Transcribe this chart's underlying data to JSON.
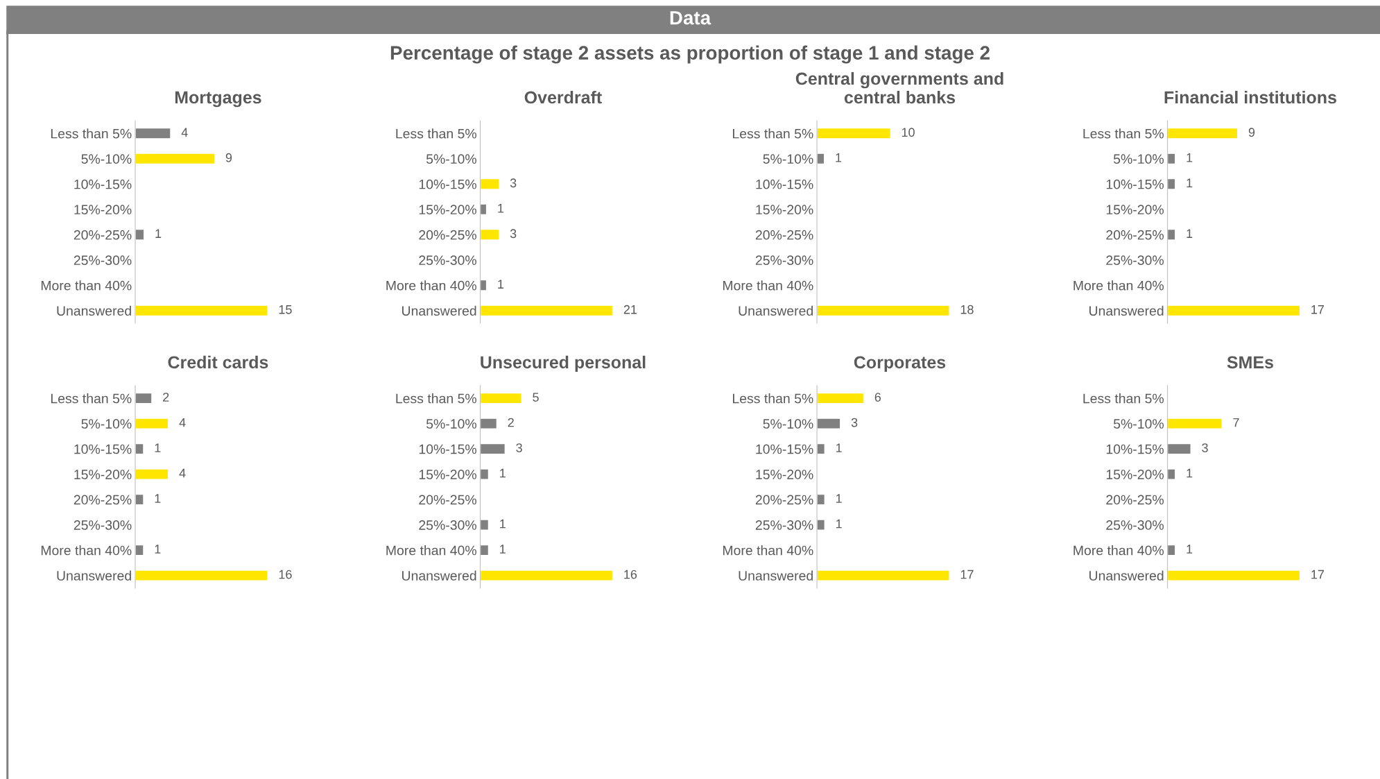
{
  "chart_data": [
    {
      "type": "bar",
      "orientation": "horizontal",
      "title": "Mortgages",
      "annotations": [
        "Data",
        "Percentage of stage 2 assets as proportion of stage 1 and stage 2"
      ],
      "categories": [
        "Less than 5%",
        "5%-10%",
        "10%-15%",
        "15%-20%",
        "20%-25%",
        "25%-30%",
        "More than 40%",
        "Unanswered"
      ],
      "values": [
        4,
        9,
        null,
        null,
        1,
        null,
        null,
        15
      ],
      "colors": [
        "#808080",
        "#ffe600",
        null,
        null,
        "#808080",
        null,
        null,
        "#ffe600"
      ],
      "data_labels": true,
      "tick_labels": "y",
      "grid": false
    },
    {
      "type": "bar",
      "orientation": "horizontal",
      "title": "Overdraft",
      "categories": [
        "Less than 5%",
        "5%-10%",
        "10%-15%",
        "15%-20%",
        "20%-25%",
        "25%-30%",
        "More than 40%",
        "Unanswered"
      ],
      "values": [
        null,
        null,
        3,
        1,
        3,
        null,
        1,
        21
      ],
      "colors": [
        null,
        null,
        "#ffe600",
        "#808080",
        "#ffe600",
        null,
        "#808080",
        "#ffe600"
      ],
      "data_labels": true,
      "tick_labels": "y",
      "grid": false
    },
    {
      "type": "bar",
      "orientation": "horizontal",
      "title": "Central governments and\ncentral banks",
      "categories": [
        "Less than 5%",
        "5%-10%",
        "10%-15%",
        "15%-20%",
        "20%-25%",
        "25%-30%",
        "More than 40%",
        "Unanswered"
      ],
      "values": [
        10,
        1,
        null,
        null,
        null,
        null,
        null,
        18
      ],
      "colors": [
        "#ffe600",
        "#808080",
        null,
        null,
        null,
        null,
        null,
        "#ffe600"
      ],
      "data_labels": true,
      "tick_labels": "y",
      "grid": false
    },
    {
      "type": "bar",
      "orientation": "horizontal",
      "title": "Financial institutions",
      "categories": [
        "Less than 5%",
        "5%-10%",
        "10%-15%",
        "15%-20%",
        "20%-25%",
        "25%-30%",
        "More than 40%",
        "Unanswered"
      ],
      "values": [
        9,
        1,
        1,
        null,
        1,
        null,
        null,
        17
      ],
      "colors": [
        "#ffe600",
        "#808080",
        "#808080",
        null,
        "#808080",
        null,
        null,
        "#ffe600"
      ],
      "data_labels": true,
      "tick_labels": "y",
      "grid": false
    },
    {
      "type": "bar",
      "orientation": "horizontal",
      "title": "Credit cards",
      "categories": [
        "Less than 5%",
        "5%-10%",
        "10%-15%",
        "15%-20%",
        "20%-25%",
        "25%-30%",
        "More than 40%",
        "Unanswered"
      ],
      "values": [
        2,
        4,
        1,
        4,
        1,
        null,
        1,
        16
      ],
      "colors": [
        "#808080",
        "#ffe600",
        "#808080",
        "#ffe600",
        "#808080",
        null,
        "#808080",
        "#ffe600"
      ],
      "data_labels": true,
      "tick_labels": "y",
      "grid": false
    },
    {
      "type": "bar",
      "orientation": "horizontal",
      "title": "Unsecured personal",
      "categories": [
        "Less than 5%",
        "5%-10%",
        "10%-15%",
        "15%-20%",
        "20%-25%",
        "25%-30%",
        "More than 40%",
        "Unanswered"
      ],
      "values": [
        5,
        2,
        3,
        1,
        null,
        1,
        1,
        16
      ],
      "colors": [
        "#ffe600",
        "#808080",
        "#808080",
        "#808080",
        null,
        "#808080",
        "#808080",
        "#ffe600"
      ],
      "data_labels": true,
      "tick_labels": "y",
      "grid": false
    },
    {
      "type": "bar",
      "orientation": "horizontal",
      "title": "Corporates",
      "categories": [
        "Less than 5%",
        "5%-10%",
        "10%-15%",
        "15%-20%",
        "20%-25%",
        "25%-30%",
        "More than 40%",
        "Unanswered"
      ],
      "values": [
        6,
        3,
        1,
        null,
        1,
        1,
        null,
        17
      ],
      "colors": [
        "#ffe600",
        "#808080",
        "#808080",
        null,
        "#808080",
        "#808080",
        null,
        "#ffe600"
      ],
      "data_labels": true,
      "tick_labels": "y",
      "grid": false
    },
    {
      "type": "bar",
      "orientation": "horizontal",
      "title": "SMEs",
      "categories": [
        "Less than 5%",
        "5%-10%",
        "10%-15%",
        "15%-20%",
        "20%-25%",
        "25%-30%",
        "More than 40%",
        "Unanswered"
      ],
      "values": [
        null,
        7,
        3,
        1,
        null,
        null,
        1,
        17
      ],
      "colors": [
        null,
        "#ffe600",
        "#808080",
        "#808080",
        null,
        null,
        "#808080",
        "#ffe600"
      ],
      "data_labels": true,
      "tick_labels": "y",
      "grid": false
    }
  ]
}
